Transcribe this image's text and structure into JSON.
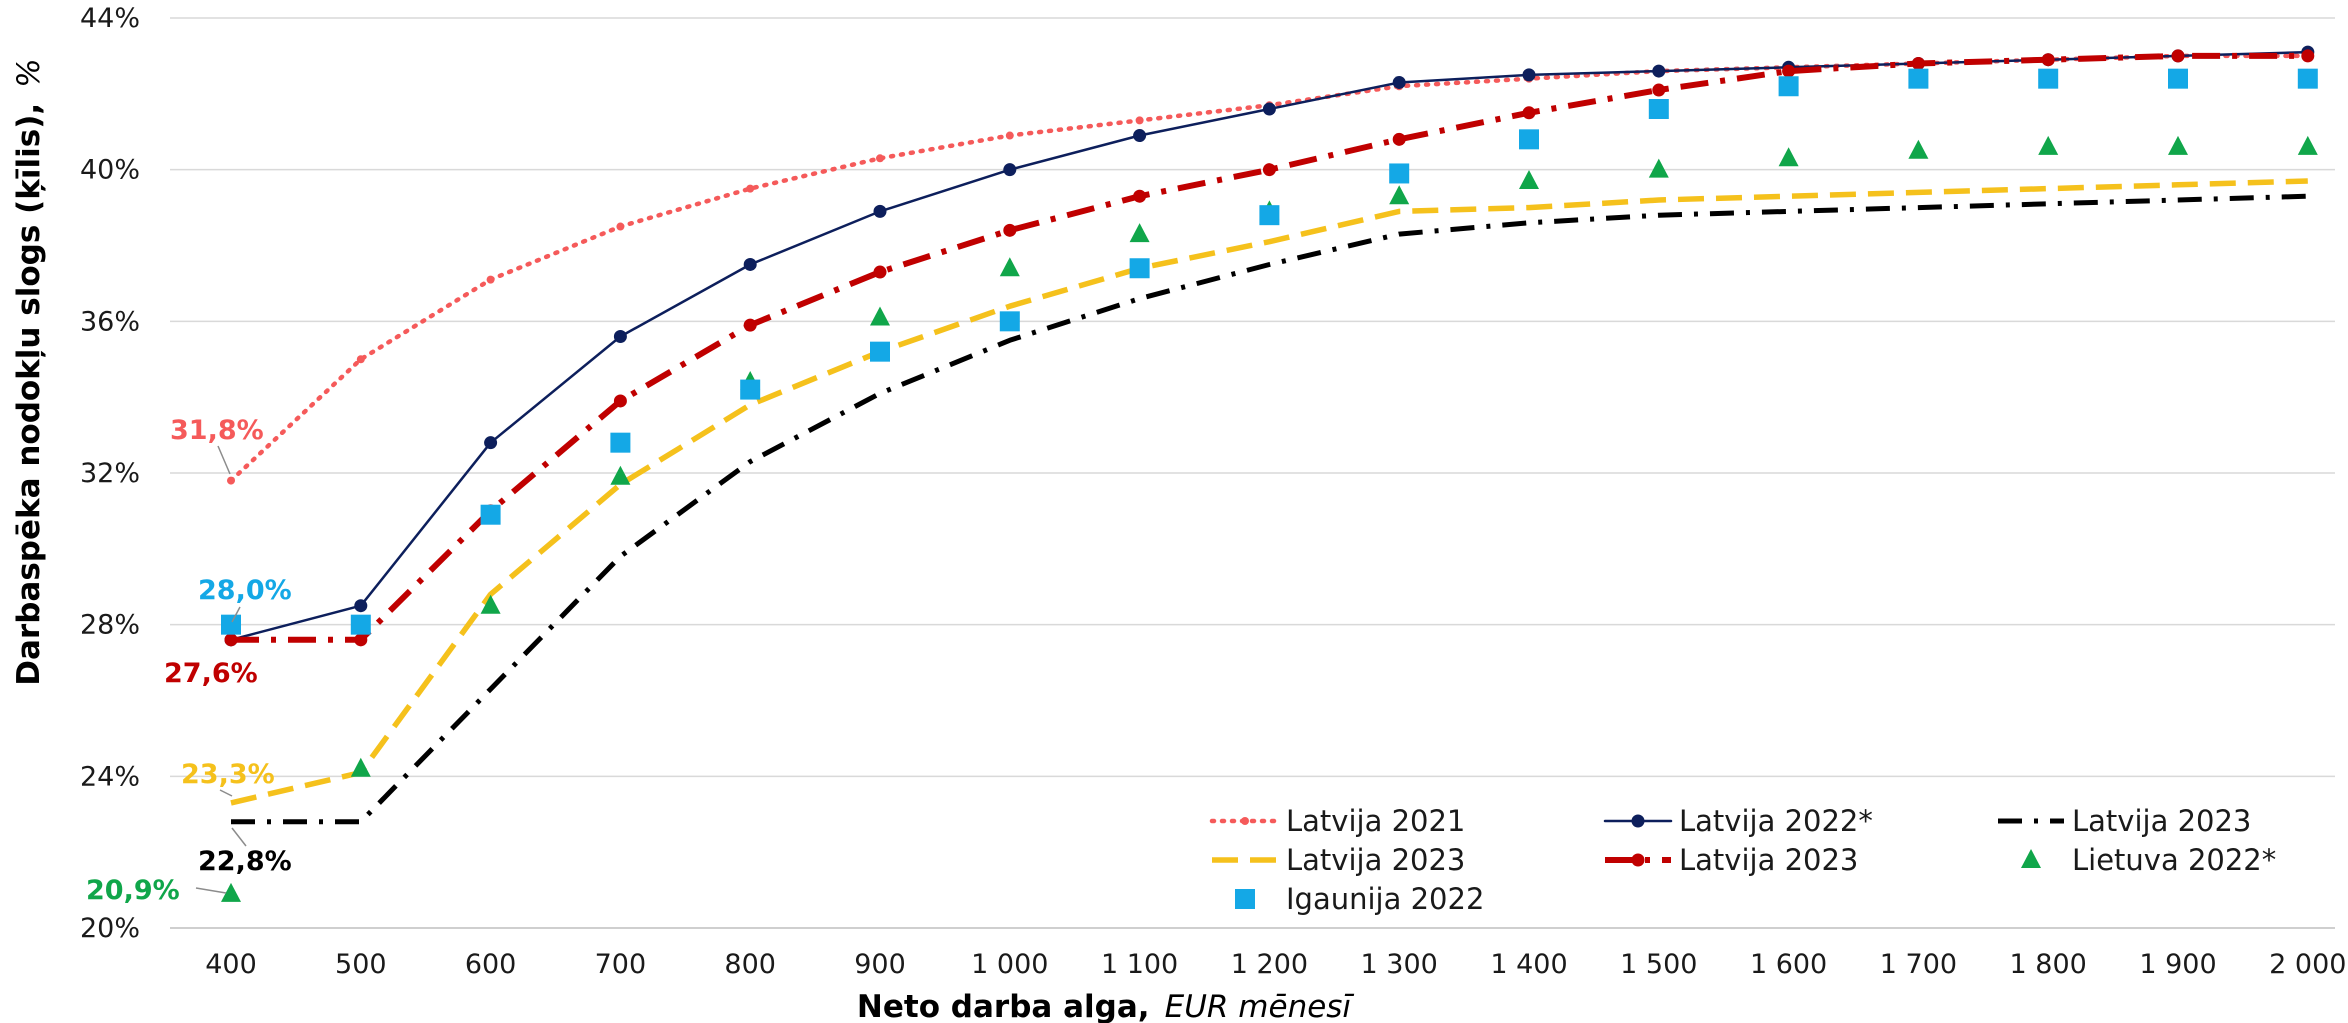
{
  "chart_data": {
    "type": "line",
    "xlabel": "Neto darba alga,",
    "xlabel_unit": "EUR mēnesī",
    "ylabel": "Darbaspēka nodokļu slogs (ķīlis),",
    "ylabel_unit": "%",
    "ylim": [
      20,
      44
    ],
    "y_ticks": [
      "20%",
      "24%",
      "28%",
      "32%",
      "36%",
      "40%",
      "44%"
    ],
    "y_tick_values": [
      20,
      24,
      28,
      32,
      36,
      40,
      44
    ],
    "x": [
      400,
      500,
      600,
      700,
      800,
      900,
      1000,
      1100,
      1200,
      1300,
      1400,
      1500,
      1600,
      1700,
      1800,
      1900,
      2000
    ],
    "x_tick_labels": [
      "400",
      "500",
      "600",
      "700",
      "800",
      "900",
      "1 000",
      "1 100",
      "1 200",
      "1 300",
      "1 400",
      "1 500",
      "1 600",
      "1 700",
      "1 800",
      "1 900",
      "2 000"
    ],
    "grid": true,
    "legend_position": "bottom-right",
    "series": [
      {
        "name": "Latvija 2021",
        "style": "dotted",
        "marker": "dot",
        "color": "#f55a5a",
        "values": [
          31.8,
          35.0,
          37.1,
          38.5,
          39.5,
          40.3,
          40.9,
          41.3,
          41.7,
          42.2,
          42.4,
          42.6,
          42.7,
          42.8,
          42.9,
          43.0,
          43.0
        ]
      },
      {
        "name": "Latvija 2022*",
        "style": "solid",
        "marker": "circle",
        "color": "#0d1f5c",
        "values": [
          27.6,
          28.5,
          32.8,
          35.6,
          37.5,
          38.9,
          40.0,
          40.9,
          41.6,
          42.3,
          42.5,
          42.6,
          42.7,
          42.8,
          42.9,
          43.0,
          43.1
        ]
      },
      {
        "name": "Latvija 2023",
        "style": "dashdot",
        "marker": "none",
        "color": "#000000",
        "values": [
          22.8,
          22.8,
          26.3,
          29.8,
          32.3,
          34.1,
          35.5,
          36.6,
          37.5,
          38.3,
          38.6,
          38.8,
          38.9,
          39.0,
          39.1,
          39.2,
          39.3
        ]
      },
      {
        "name": "Latvija 2023",
        "style": "dashed",
        "marker": "none",
        "color": "#f5c11c",
        "values": [
          23.3,
          24.1,
          28.8,
          31.7,
          33.8,
          35.2,
          36.4,
          37.4,
          38.1,
          38.9,
          39.0,
          39.2,
          39.3,
          39.4,
          39.5,
          39.6,
          39.7
        ]
      },
      {
        "name": "Latvija 2023",
        "style": "dashdot-bold",
        "marker": "circle",
        "color": "#c00000",
        "values": [
          27.6,
          27.6,
          31.0,
          33.9,
          35.9,
          37.3,
          38.4,
          39.3,
          40.0,
          40.8,
          41.5,
          42.1,
          42.6,
          42.8,
          42.9,
          43.0,
          43.0
        ]
      },
      {
        "name": "Lietuva 2022*",
        "style": "none",
        "marker": "triangle",
        "color": "#10a64a",
        "values": [
          20.9,
          24.2,
          28.5,
          31.9,
          34.4,
          36.1,
          37.4,
          38.3,
          38.9,
          39.3,
          39.7,
          40.0,
          40.3,
          40.5,
          40.6,
          40.6,
          40.6
        ]
      },
      {
        "name": "Igaunija 2022",
        "style": "none",
        "marker": "square",
        "color": "#14a8e6",
        "values": [
          28.0,
          28.0,
          30.9,
          32.8,
          34.2,
          35.2,
          36.0,
          37.4,
          38.8,
          39.9,
          40.8,
          41.6,
          42.2,
          42.4,
          42.4,
          42.4,
          42.4
        ]
      }
    ],
    "annotations": [
      {
        "text": "31,8%",
        "series": 0,
        "color": "#f55a5a"
      },
      {
        "text": "28,0%",
        "series": 6,
        "color": "#14a8e6"
      },
      {
        "text": "27,6%",
        "series": 4,
        "color": "#c00000"
      },
      {
        "text": "23,3%",
        "series": 3,
        "color": "#f5c11c"
      },
      {
        "text": "22,8%",
        "series": 2,
        "color": "#000000"
      },
      {
        "text": "20,9%",
        "series": 5,
        "color": "#10a64a"
      }
    ]
  }
}
